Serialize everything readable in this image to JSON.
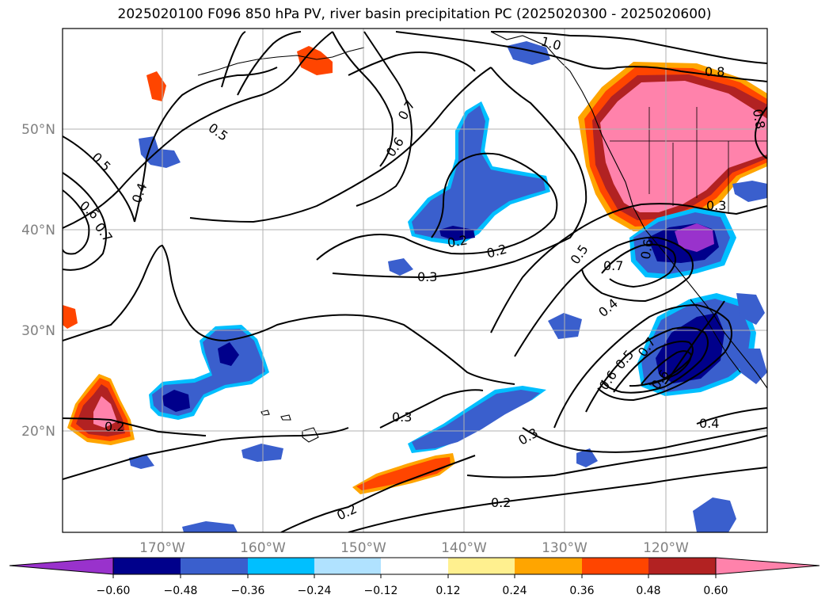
{
  "title": "2025020100 F096 850 hPa PV, river basin precipitation PC (2025020300 - 2025020600)",
  "axes": {
    "lon_ticks": [
      "170°W",
      "160°W",
      "150°W",
      "140°W",
      "130°W",
      "120°W"
    ],
    "lat_ticks": [
      "50°N",
      "40°N",
      "30°N",
      "20°N"
    ]
  },
  "contour_labels": [
    "1.0",
    "0.8",
    "0.8",
    "0.7",
    "0.6",
    "0.5",
    "0.5",
    "0.4",
    "0.6",
    "0.7",
    "0.2",
    "0.3",
    "0.5",
    "0.7",
    "0.6",
    "0.3",
    "0.4",
    "0.5",
    "0.7",
    "0.6",
    "0.6",
    "0.4",
    "0.3",
    "0.3",
    "0.2",
    "0.2",
    "0.2",
    "0.2"
  ],
  "colorbar": {
    "ticks": [
      "−0.60",
      "−0.48",
      "−0.36",
      "−0.24",
      "−0.12",
      "0.12",
      "0.24",
      "0.36",
      "0.48",
      "0.60"
    ],
    "colors": [
      "#9932cc",
      "#00008b",
      "#3a5fcd",
      "#00bfff",
      "#b0e2ff",
      "#ffffff",
      "#fff08f",
      "#ffa500",
      "#ff4500",
      "#b22222",
      "#ff82ab"
    ]
  },
  "colors": {
    "pink": "#ff82ab",
    "darkred": "#b22222",
    "orangered": "#ff4500",
    "orange": "#ffa500",
    "yellow": "#fff08f",
    "purple": "#9932cc",
    "navy": "#00008b",
    "royal": "#3a5fcd",
    "sky": "#00bfff",
    "pale": "#b0e2ff"
  }
}
